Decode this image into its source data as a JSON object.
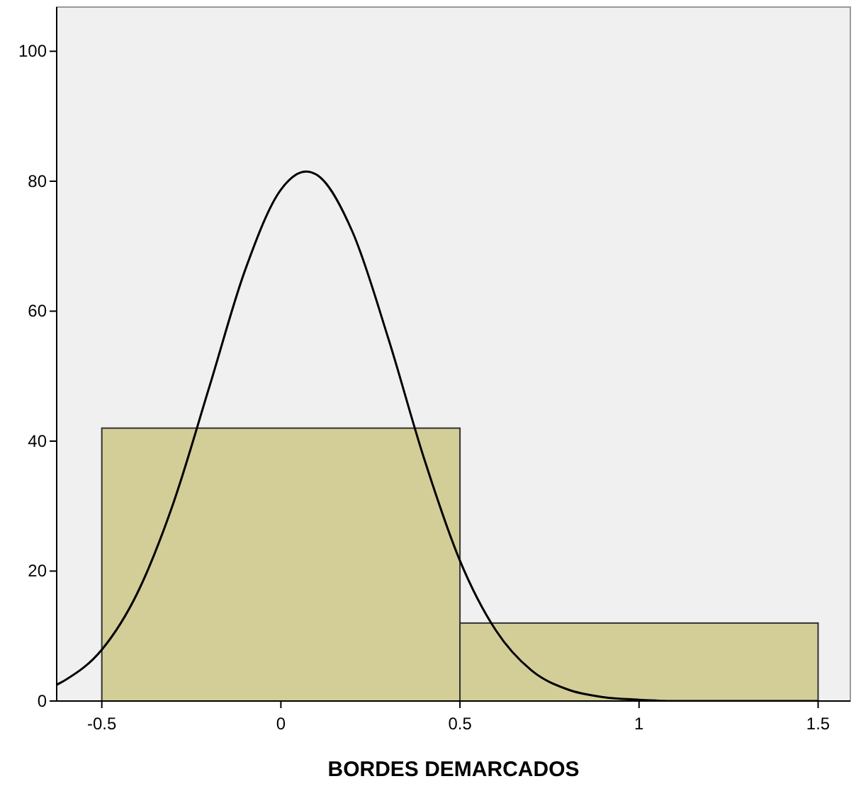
{
  "chart_data": {
    "type": "histogram",
    "xlabel": "BORDES DEMARCADOS",
    "bins": [
      -0.5,
      0.5,
      1.5
    ],
    "values": [
      42,
      12
    ],
    "color": "#d3ce98",
    "series": [
      {
        "type": "line",
        "color": "#000000",
        "x": [
          -0.626,
          -0.6,
          -0.5,
          -0.4,
          -0.3,
          -0.2,
          -0.1,
          0,
          0.07,
          0.1,
          0.2,
          0.3,
          0.4,
          0.5,
          0.6,
          0.7,
          0.8,
          0.9,
          1.0,
          1.1,
          1.2,
          1.3,
          1.5
        ],
        "values": [
          2.5,
          3.3,
          7.9,
          16.7,
          30.5,
          48.3,
          66.3,
          78.7,
          81.5,
          81.0,
          72.2,
          55.8,
          37.3,
          21.6,
          10.9,
          4.7,
          1.8,
          0.6,
          0.2,
          0,
          0,
          0,
          0
        ]
      }
    ],
    "xlim": [
      -0.626,
      1.59
    ],
    "ylim": [
      0,
      106.8
    ],
    "xticks": [
      -0.5,
      0,
      0.5,
      1,
      1.5
    ],
    "yticks": [
      0,
      20,
      40,
      60,
      80,
      100
    ],
    "marker": "none",
    "line_style": "solid"
  }
}
